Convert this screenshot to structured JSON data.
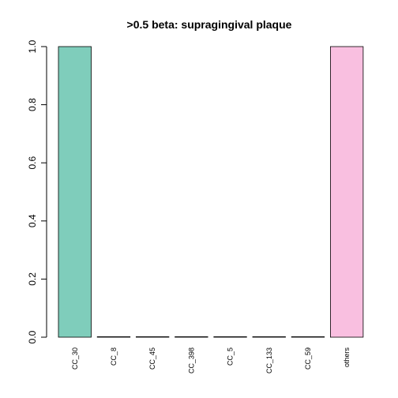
{
  "chart_data": {
    "type": "bar",
    "title": ">0.5 beta:  supragingival plaque",
    "xlabel": "",
    "ylabel": "",
    "categories": [
      "CC_30",
      "CC_8",
      "CC_45",
      "CC_398",
      "CC_5",
      "CC_133",
      "CC_59",
      "others"
    ],
    "values": [
      1.0,
      0,
      0,
      0,
      0,
      0,
      0,
      1.0
    ],
    "colors": [
      "#7fcdbb",
      "#7fcdbb",
      "#7fcdbb",
      "#7fcdbb",
      "#7fcdbb",
      "#7fcdbb",
      "#7fcdbb",
      "#f9bfe0"
    ],
    "ylim": [
      0,
      1.0
    ],
    "yticks": [
      "0.0",
      "0.2",
      "0.4",
      "0.6",
      "0.8",
      "1.0"
    ],
    "ytick_values": [
      0,
      0.2,
      0.4,
      0.6,
      0.8,
      1.0
    ],
    "grid": false,
    "legend": "none"
  }
}
